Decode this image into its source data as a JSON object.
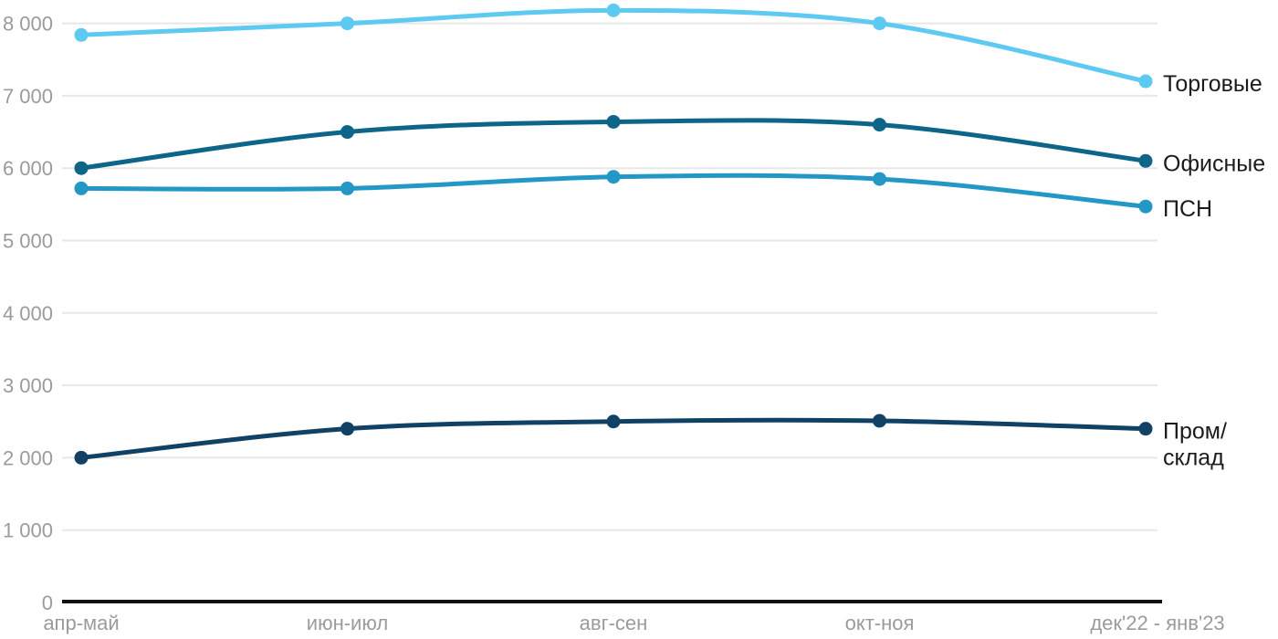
{
  "chart_data": {
    "type": "line",
    "title": "",
    "xlabel": "",
    "ylabel": "",
    "grid": true,
    "legend_position": "end-of-line",
    "categories": [
      "апр-май",
      "июн-июл",
      "авг-сен",
      "окт-ноя",
      "дек'22 - янв'23"
    ],
    "y_axis": {
      "min": 0,
      "max": 8000,
      "step": 1000,
      "tick_labels": [
        "0",
        "1 000",
        "2 000",
        "3 000",
        "4 000",
        "5 000",
        "6 000",
        "7 000",
        "8 000"
      ]
    },
    "series": [
      {
        "name": "Торговые",
        "slug": "retail",
        "color": "#5ecaf2",
        "values": [
          7840,
          8000,
          8180,
          8000,
          7200
        ],
        "label_lines": [
          "Торговые"
        ]
      },
      {
        "name": "Офисные",
        "slug": "office",
        "color": "#0d6588",
        "values": [
          6000,
          6500,
          6640,
          6600,
          6100
        ],
        "label_lines": [
          "Офисные"
        ]
      },
      {
        "name": "ПСН",
        "slug": "psn",
        "color": "#2397c6",
        "values": [
          5720,
          5720,
          5880,
          5850,
          5470
        ],
        "label_lines": [
          "ПСН"
        ]
      },
      {
        "name": "Пром/склад",
        "slug": "industrial",
        "color": "#124166",
        "values": [
          2000,
          2400,
          2500,
          2510,
          2400
        ],
        "label_lines": [
          "Пром/",
          "склад"
        ]
      }
    ]
  },
  "style": {
    "background": "#ffffff",
    "grid_color": "#e7e7e7",
    "axis_color": "#111111",
    "tick_label_color": "#9b9b9b",
    "series_label_color": "#1b1b1b"
  }
}
